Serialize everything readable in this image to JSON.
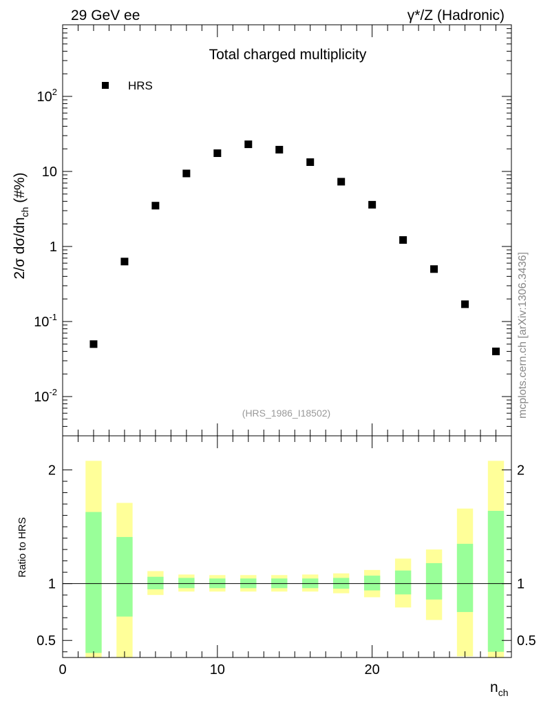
{
  "header": {
    "left": "29 GeV ee",
    "right": "γ*/Z (Hadronic)"
  },
  "watermark": "mcplots.cern.ch [arXiv:1306.3436]",
  "chart_data": [
    {
      "type": "scatter",
      "title": "Total charged multiplicity",
      "ylabel": "2/σ  dσ/dn_ch (#%)",
      "xlabel": "n_ch",
      "yscale": "log",
      "ylim": [
        0.003,
        900
      ],
      "xlim": [
        0,
        29
      ],
      "yticks": [
        "10^-2",
        "10^-1",
        "1",
        "10",
        "10^2"
      ],
      "legend": [
        "HRS"
      ],
      "legend_position": "top-left",
      "annotation": "(HRS_1986_I18502)",
      "series": [
        {
          "name": "HRS",
          "x": [
            2,
            4,
            6,
            8,
            10,
            12,
            14,
            16,
            18,
            20,
            22,
            24,
            26,
            28
          ],
          "y": [
            0.05,
            0.63,
            3.5,
            9.4,
            17.5,
            23,
            19.5,
            13.3,
            7.3,
            3.6,
            1.22,
            0.5,
            0.17,
            0.04
          ]
        }
      ]
    },
    {
      "type": "bar",
      "ylabel": "Ratio to HRS",
      "xlabel": "n_ch",
      "ylim": [
        0.35,
        2.3
      ],
      "xlim": [
        0,
        29
      ],
      "xticks": [
        "0",
        "10",
        "20"
      ],
      "yticks": [
        "0.5",
        "1",
        "2"
      ],
      "reference_line": 1,
      "band_colors": {
        "stat": "#99ff99",
        "total": "#ffff99"
      },
      "bands": [
        {
          "x": 2,
          "inner": [
            0.39,
            1.63
          ],
          "outer": [
            0.35,
            2.08
          ]
        },
        {
          "x": 4,
          "inner": [
            0.71,
            1.41
          ],
          "outer": [
            0.35,
            1.71
          ]
        },
        {
          "x": 6,
          "inner": [
            0.95,
            1.06
          ],
          "outer": [
            0.9,
            1.11
          ]
        },
        {
          "x": 8,
          "inner": [
            0.96,
            1.05
          ],
          "outer": [
            0.93,
            1.08
          ]
        },
        {
          "x": 10,
          "inner": [
            0.96,
            1.045
          ],
          "outer": [
            0.93,
            1.075
          ]
        },
        {
          "x": 12,
          "inner": [
            0.96,
            1.045
          ],
          "outer": [
            0.93,
            1.075
          ]
        },
        {
          "x": 14,
          "inner": [
            0.96,
            1.045
          ],
          "outer": [
            0.93,
            1.075
          ]
        },
        {
          "x": 16,
          "inner": [
            0.96,
            1.045
          ],
          "outer": [
            0.93,
            1.08
          ]
        },
        {
          "x": 18,
          "inner": [
            0.955,
            1.05
          ],
          "outer": [
            0.915,
            1.09
          ]
        },
        {
          "x": 20,
          "inner": [
            0.94,
            1.07
          ],
          "outer": [
            0.88,
            1.12
          ]
        },
        {
          "x": 22,
          "inner": [
            0.905,
            1.115
          ],
          "outer": [
            0.79,
            1.22
          ]
        },
        {
          "x": 24,
          "inner": [
            0.86,
            1.18
          ],
          "outer": [
            0.68,
            1.3
          ]
        },
        {
          "x": 26,
          "inner": [
            0.75,
            1.35
          ],
          "outer": [
            0.36,
            1.66
          ]
        },
        {
          "x": 28,
          "inner": [
            0.4,
            1.64
          ],
          "outer": [
            0.35,
            2.08
          ]
        }
      ]
    }
  ]
}
